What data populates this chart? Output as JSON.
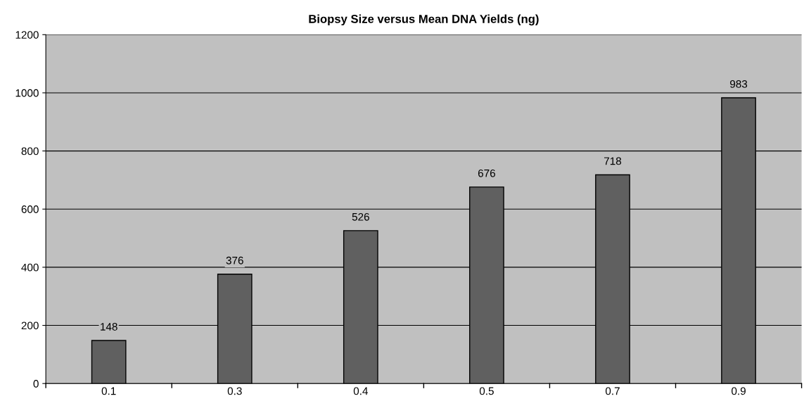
{
  "chart_data": {
    "type": "bar",
    "title": "Biopsy Size versus Mean DNA Yields (ng)",
    "categories": [
      "0.1",
      "0.3",
      "0.4",
      "0.5",
      "0.7",
      "0.9"
    ],
    "values": [
      148,
      376,
      526,
      676,
      718,
      983
    ],
    "color": "#606060",
    "ylim": [
      0,
      1200
    ],
    "yticks": [
      0,
      200,
      400,
      600,
      800,
      1000,
      1200
    ],
    "grid": "y",
    "data_labels": true
  }
}
